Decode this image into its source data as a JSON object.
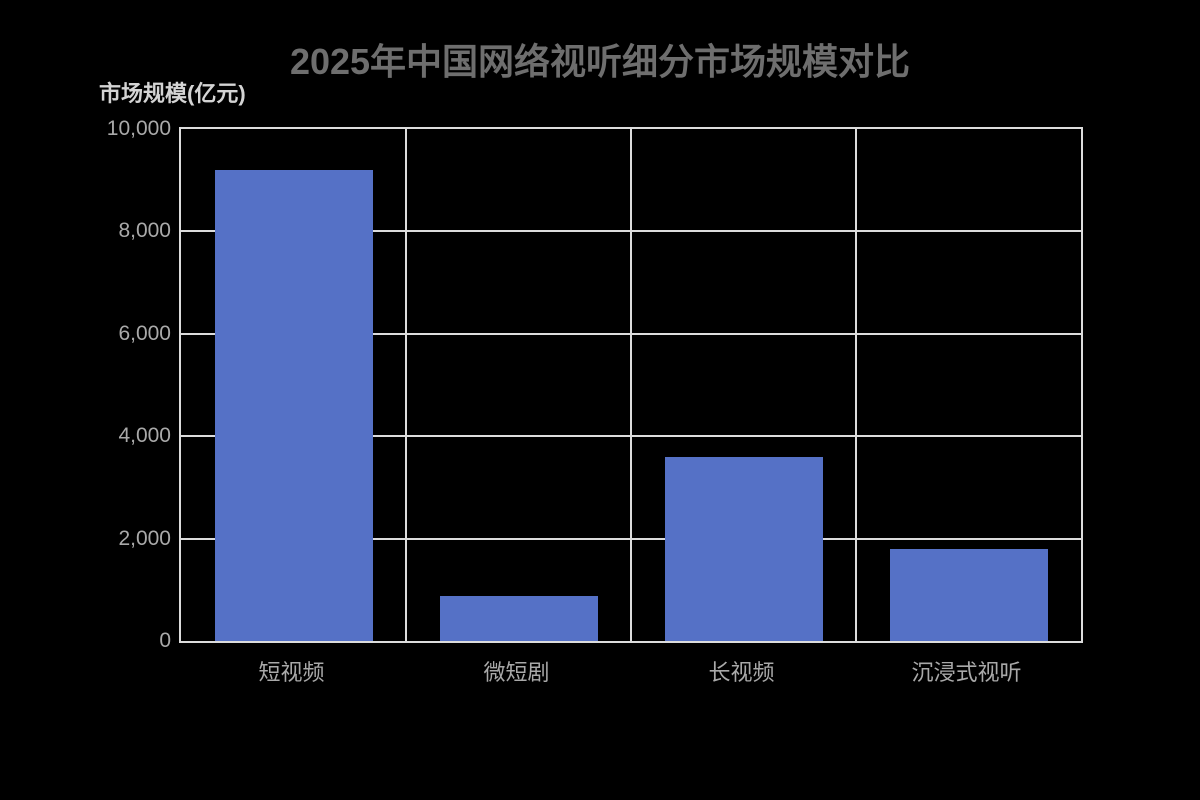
{
  "page": {
    "background_color": "#000000"
  },
  "chart_data": {
    "type": "bar",
    "title": "2025年中国网络视听细分市场规模对比",
    "ylabel": "市场规模(亿元)",
    "xlabel": "",
    "categories": [
      "短视频",
      "微短剧",
      "长视频",
      "沉浸式视听"
    ],
    "values": [
      9200,
      880,
      3600,
      1800
    ],
    "ylim": [
      0,
      10000
    ],
    "ytick_interval": 2000,
    "ytick_labels": [
      "0",
      "2,000",
      "4,000",
      "6,000",
      "8,000",
      "10,000"
    ],
    "grid": "on",
    "legend": "none",
    "colors": {
      "bar_fill": "#5571C6",
      "gridline": "#dcdcdc",
      "axis_border": "#dcdcdc",
      "title_text": "#6e6e6e",
      "axis_title_text": "#d4d4d4",
      "tick_label_text": "#a9a9a9",
      "category_label_text": "#a9a9a9",
      "background": "#000000"
    }
  }
}
